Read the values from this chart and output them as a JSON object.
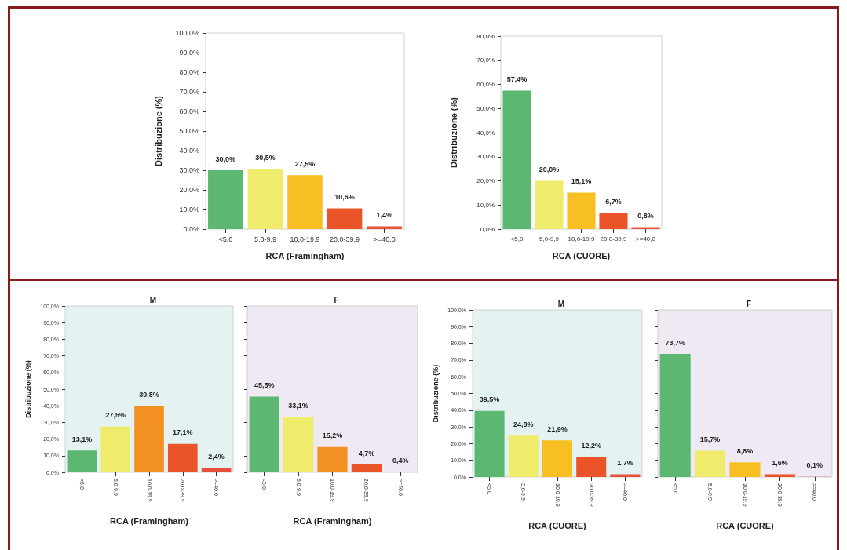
{
  "chart_data": [
    {
      "type": "bar",
      "xlabel": "RCA (Framingham)",
      "ylabel": "Distribuzione (%)",
      "categories": [
        "<5,0",
        "5,0-9,9",
        "10,0-19,9",
        "20,0-39,9",
        ">=40,0"
      ],
      "values": [
        30.0,
        30.5,
        27.5,
        10.6,
        1.4
      ],
      "value_labels": [
        "30,0%",
        "30,5%",
        "27,5%",
        "10,6%",
        "1,4%"
      ],
      "colors": [
        "#5cb870",
        "#eeec6a",
        "#f8bf22",
        "#ea5428",
        "#e8503c"
      ],
      "ylim": [
        0,
        100
      ],
      "yticks": [
        {
          "value": 0,
          "label": "0,0%"
        },
        {
          "value": 10,
          "label": "10,0%"
        },
        {
          "value": 20,
          "label": "20,0%"
        },
        {
          "value": 30,
          "label": "30,0%"
        },
        {
          "value": 40,
          "label": "40,0%"
        },
        {
          "value": 50,
          "label": "50,0%"
        },
        {
          "value": 60,
          "label": "60,0%"
        },
        {
          "value": 70,
          "label": "70,0%"
        },
        {
          "value": 80,
          "label": "80,0%"
        },
        {
          "value": 90,
          "label": "90,0%"
        },
        {
          "value": 100,
          "label": "100,0%"
        }
      ],
      "grid": false
    },
    {
      "type": "bar",
      "xlabel": "RCA (CUORE)",
      "ylabel": "Distribuzione (%)",
      "categories": [
        "<5,0",
        "5,0-9,9",
        "10,0-19,9",
        "20,0-39,9",
        ">=40,0"
      ],
      "values": [
        57.4,
        20.0,
        15.1,
        6.7,
        0.8
      ],
      "value_labels": [
        "57,4%",
        "20,0%",
        "15,1%",
        "6,7%",
        "0,8%"
      ],
      "colors": [
        "#5cb870",
        "#eeec6a",
        "#f8bf22",
        "#ea5428",
        "#e8503c"
      ],
      "ylim": [
        0,
        80
      ],
      "yticks": [
        {
          "value": 0,
          "label": "0,0%"
        },
        {
          "value": 10,
          "label": "10,0%"
        },
        {
          "value": 20,
          "label": "20,0%"
        },
        {
          "value": 30,
          "label": "30,0%"
        },
        {
          "value": 40,
          "label": "40,0%"
        },
        {
          "value": 50,
          "label": "50,0%"
        },
        {
          "value": 60,
          "label": "60,0%"
        },
        {
          "value": 70,
          "label": "70,0%"
        },
        {
          "value": 80,
          "label": "80,0%"
        }
      ],
      "grid": false
    },
    {
      "type": "bar",
      "title": "M",
      "xlabel": "RCA (Framingham)",
      "ylabel": "Distribuzione (%)",
      "categories": [
        "<5,0",
        "5,0-9,9",
        "10,0-19,9",
        "20,0-39,9",
        ">=40,0"
      ],
      "values": [
        13.1,
        27.5,
        39.8,
        17.1,
        2.4
      ],
      "value_labels": [
        "13,1%",
        "27,5%",
        "39,8%",
        "17,1%",
        "2,4%"
      ],
      "colors": [
        "#5cb870",
        "#eeec6a",
        "#f39022",
        "#ea5428",
        "#e8503c"
      ],
      "ylim": [
        0,
        100
      ],
      "yticks": [
        {
          "value": 0,
          "label": "0,0%"
        },
        {
          "value": 10,
          "label": "10,0%"
        },
        {
          "value": 20,
          "label": "20,0%"
        },
        {
          "value": 30,
          "label": "30,0%"
        },
        {
          "value": 40,
          "label": "40,0%"
        },
        {
          "value": 50,
          "label": "50,0%"
        },
        {
          "value": 60,
          "label": "60,0%"
        },
        {
          "value": 70,
          "label": "70,0%"
        },
        {
          "value": 80,
          "label": "80,0%"
        },
        {
          "value": 90,
          "label": "90,0%"
        },
        {
          "value": 100,
          "label": "100,0%"
        }
      ],
      "grid": false
    },
    {
      "type": "bar",
      "title": "F",
      "xlabel": "RCA (Framingham)",
      "categories": [
        "<5,0",
        "5,0-9,9",
        "10,0-19,9",
        "20,0-39,9",
        ">=40,0"
      ],
      "values": [
        45.5,
        33.1,
        15.2,
        4.7,
        0.4
      ],
      "value_labels": [
        "45,5%",
        "33,1%",
        "15,2%",
        "4,7%",
        "0,4%"
      ],
      "colors": [
        "#5cb870",
        "#eeec6a",
        "#f39022",
        "#ea5428",
        "#e8503c"
      ],
      "ylim": [
        0,
        100
      ],
      "yticks": [
        {
          "value": 0,
          "label": null
        },
        {
          "value": 10,
          "label": null
        },
        {
          "value": 20,
          "label": null
        },
        {
          "value": 30,
          "label": null
        },
        {
          "value": 40,
          "label": null
        },
        {
          "value": 50,
          "label": null
        },
        {
          "value": 60,
          "label": null
        },
        {
          "value": 70,
          "label": null
        },
        {
          "value": 80,
          "label": null
        },
        {
          "value": 90,
          "label": null
        },
        {
          "value": 100,
          "label": null
        }
      ],
      "tick_labels": "x",
      "grid": false
    },
    {
      "type": "bar",
      "title": "M",
      "xlabel": "RCA (CUORE)",
      "ylabel": "Distribuzione (%)",
      "categories": [
        "<5,0",
        "5,0-9,9",
        "10,0-19,9",
        "20,0-39,9",
        ">=40,0"
      ],
      "values": [
        39.5,
        24.8,
        21.9,
        12.2,
        1.7
      ],
      "value_labels": [
        "39,5%",
        "24,8%",
        "21,9%",
        "12,2%",
        "1,7%"
      ],
      "colors": [
        "#5cb870",
        "#eeec6a",
        "#f8bf22",
        "#ea5428",
        "#e8503c"
      ],
      "ylim": [
        0,
        100
      ],
      "yticks": [
        {
          "value": 0,
          "label": "0,0%"
        },
        {
          "value": 10,
          "label": "10,0%"
        },
        {
          "value": 20,
          "label": "20,0%"
        },
        {
          "value": 30,
          "label": "30,0%"
        },
        {
          "value": 40,
          "label": "40,0%"
        },
        {
          "value": 50,
          "label": "50,0%"
        },
        {
          "value": 60,
          "label": "60,0%"
        },
        {
          "value": 70,
          "label": "70,0%"
        },
        {
          "value": 80,
          "label": "80,0%"
        },
        {
          "value": 90,
          "label": "90,0%"
        },
        {
          "value": 100,
          "label": "100,0%"
        }
      ],
      "grid": false
    },
    {
      "type": "bar",
      "title": "F",
      "xlabel": "RCA (CUORE)",
      "categories": [
        "<5,0",
        "5,0-9,9",
        "10,0-19,9",
        "20,0-39,9",
        ">=40,0"
      ],
      "values": [
        73.7,
        15.7,
        8.8,
        1.6,
        0.1
      ],
      "value_labels": [
        "73,7%",
        "15,7%",
        "8,8%",
        "1,6%",
        "0,1%"
      ],
      "colors": [
        "#5cb870",
        "#eeec6a",
        "#f8bf22",
        "#ea5428",
        "#e8503c"
      ],
      "ylim": [
        0,
        100
      ],
      "yticks": [
        {
          "value": 0,
          "label": null
        },
        {
          "value": 10,
          "label": null
        },
        {
          "value": 20,
          "label": null
        },
        {
          "value": 30,
          "label": null
        },
        {
          "value": 40,
          "label": null
        },
        {
          "value": 50,
          "label": null
        },
        {
          "value": 60,
          "label": null
        },
        {
          "value": 70,
          "label": null
        },
        {
          "value": 80,
          "label": null
        },
        {
          "value": 90,
          "label": null
        },
        {
          "value": 100,
          "label": null
        }
      ],
      "tick_labels": "x",
      "grid": false
    }
  ]
}
